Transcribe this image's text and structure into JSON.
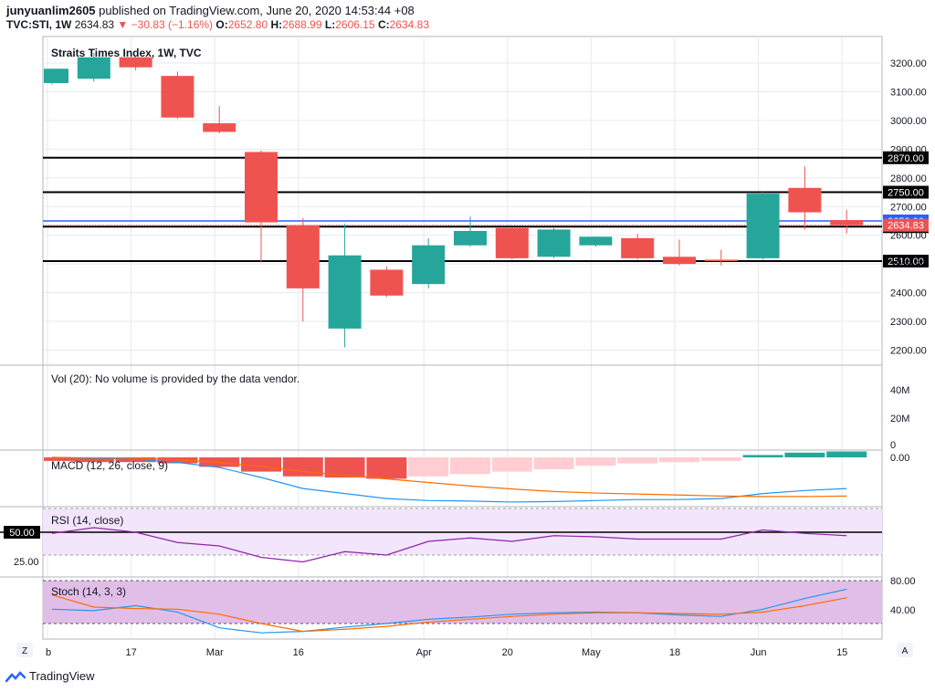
{
  "header": {
    "author": "junyuanlim2605",
    "published_text": "published on TradingView.com, June 20, 2020 14:53:44 +08",
    "symbol": "TVC:STI, 1W",
    "last": "2634.83",
    "change_arrow": "▼",
    "change": "−30.83 (−1.16%)",
    "o_label": "O:",
    "o": "2652.80",
    "h_label": "H:",
    "h": "2688.99",
    "l_label": "L:",
    "l": "2606.15",
    "c_label": "C:",
    "c": "2634.83"
  },
  "footer": {
    "brand": "TradingView"
  },
  "colors": {
    "up": "#26a69a",
    "down": "#ef5350",
    "grid": "#e6eaf0",
    "hline": "#000000",
    "blue": "#2962ff",
    "macd_hist_down_light": "#ffcdd2",
    "rsi_bg": "#f3e5fc",
    "stoch_bg": "#e1bee7"
  },
  "chart_data": {
    "type": "candlestick",
    "title": "Straits Times Index, 1W, TVC",
    "x_labels": [
      "b",
      "17",
      "Mar",
      "16",
      "Apr",
      "20",
      "May",
      "18",
      "Jun",
      "15"
    ],
    "ylim": [
      2150,
      3280
    ],
    "y_ticks": [
      2200,
      2300,
      2400,
      2500,
      2600,
      2700,
      2800,
      2900,
      3000,
      3100,
      3200
    ],
    "y_tick_labels": [
      "2200.00",
      "2300.00",
      "2400.00",
      "2500.00",
      "2600.00",
      "2700.00",
      "2800.00",
      "2900.00",
      "3000.00",
      "3100.00",
      "3200.00"
    ],
    "candles": [
      {
        "o": 3130,
        "h": 3180,
        "l": 3125,
        "c": 3180
      },
      {
        "o": 3145,
        "h": 3235,
        "l": 3135,
        "c": 3220
      },
      {
        "o": 3220,
        "h": 3225,
        "l": 3175,
        "c": 3185
      },
      {
        "o": 3155,
        "h": 3170,
        "l": 3005,
        "c": 3010
      },
      {
        "o": 2990,
        "h": 3050,
        "l": 2955,
        "c": 2960
      },
      {
        "o": 2890,
        "h": 2895,
        "l": 2505,
        "c": 2645
      },
      {
        "o": 2635,
        "h": 2660,
        "l": 2300,
        "c": 2415
      },
      {
        "o": 2275,
        "h": 2640,
        "l": 2210,
        "c": 2530
      },
      {
        "o": 2480,
        "h": 2490,
        "l": 2385,
        "c": 2390
      },
      {
        "o": 2430,
        "h": 2590,
        "l": 2415,
        "c": 2565
      },
      {
        "o": 2565,
        "h": 2665,
        "l": 2560,
        "c": 2615
      },
      {
        "o": 2625,
        "h": 2625,
        "l": 2515,
        "c": 2520
      },
      {
        "o": 2525,
        "h": 2625,
        "l": 2520,
        "c": 2620
      },
      {
        "o": 2565,
        "h": 2595,
        "l": 2560,
        "c": 2595
      },
      {
        "o": 2590,
        "h": 2605,
        "l": 2515,
        "c": 2520
      },
      {
        "o": 2525,
        "h": 2585,
        "l": 2495,
        "c": 2500
      },
      {
        "o": 2515,
        "h": 2550,
        "l": 2495,
        "c": 2510
      },
      {
        "o": 2520,
        "h": 2750,
        "l": 2515,
        "c": 2745
      },
      {
        "o": 2765,
        "h": 2840,
        "l": 2620,
        "c": 2680
      },
      {
        "o": 2653,
        "h": 2689,
        "l": 2606,
        "c": 2635
      }
    ],
    "horizontal_lines": [
      {
        "value": 2870,
        "label": "2870.00",
        "color": "#000000"
      },
      {
        "value": 2750,
        "label": "2750.00",
        "color": "#000000"
      },
      {
        "value": 2650,
        "label": "2650.00",
        "color": "#2962ff"
      },
      {
        "value": 2630,
        "label": "2630.00",
        "color": "#000000"
      },
      {
        "value": 2510,
        "label": "2510.00",
        "color": "#000000"
      }
    ],
    "last_price_label": "2634.83",
    "volume_panel": {
      "title": "Vol (20): No volume is provided by the data vendor.",
      "y_tick_labels": [
        "40M",
        "20M",
        "0"
      ]
    },
    "macd_panel": {
      "title": "MACD (12, 26, close, 9)",
      "y_tick_label": "0.00",
      "histogram": [
        -3,
        -4,
        -4,
        -5,
        -8,
        -12,
        -16,
        -17,
        -18,
        -16,
        -14,
        -12,
        -10,
        -7,
        -5,
        -4,
        -3,
        2,
        4,
        5
      ],
      "macd": [
        0,
        -2,
        -4,
        -10,
        -20,
        -40,
        -62,
        -72,
        -82,
        -86,
        -87,
        -89,
        -88,
        -86,
        -84,
        -84,
        -82,
        -72,
        -66,
        -62
      ],
      "signal": [
        0,
        -1,
        -2,
        -5,
        -10,
        -18,
        -28,
        -36,
        -43,
        -50,
        -57,
        -63,
        -68,
        -71,
        -73,
        -75,
        -77,
        -78,
        -78,
        -77
      ]
    },
    "rsi_panel": {
      "title": "RSI (14, close)",
      "ref_label": "50.00",
      "y_tick_label": "25.00",
      "values": [
        49,
        54,
        50,
        41,
        38,
        28,
        24,
        33,
        30,
        42,
        45,
        42,
        47,
        46,
        44,
        44,
        44,
        52,
        49,
        47
      ]
    },
    "stoch_panel": {
      "title": "Stoch (14, 3, 3)",
      "y_tick_labels": [
        "80.00",
        "40.00"
      ],
      "k": [
        40,
        38,
        45,
        36,
        14,
        7,
        9,
        15,
        20,
        26,
        29,
        33,
        35,
        36,
        35,
        32,
        30,
        40,
        55,
        68
      ],
      "d": [
        60,
        43,
        41,
        40,
        33,
        20,
        9,
        12,
        16,
        22,
        26,
        30,
        33,
        35,
        35,
        34,
        33,
        36,
        45,
        56
      ]
    }
  }
}
